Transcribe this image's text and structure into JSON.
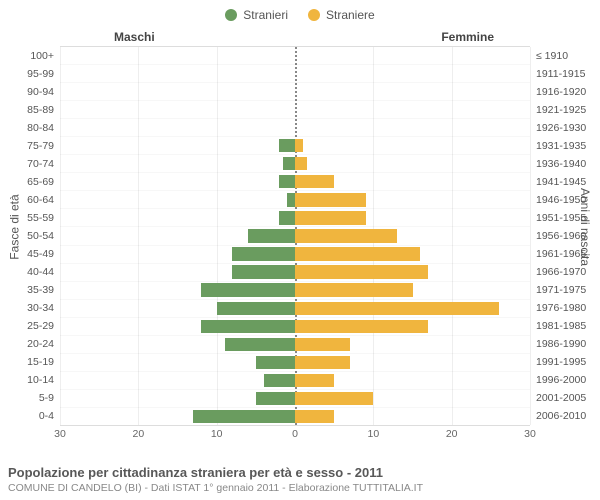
{
  "chart": {
    "type": "population-pyramid",
    "background_color": "#ffffff",
    "grid_color": "#eeeeee",
    "center_line_color": "#888888",
    "text_color": "#555555",
    "title_fontsize": 13,
    "label_fontsize": 10.5,
    "xlim": 30,
    "xticks": [
      30,
      20,
      10,
      0,
      10,
      20,
      30
    ],
    "legend": [
      {
        "label": "Stranieri",
        "color": "#6a9c5f"
      },
      {
        "label": "Straniere",
        "color": "#f0b53e"
      }
    ],
    "side_headers": {
      "left": "Maschi",
      "right": "Femmine"
    },
    "y_axis_titles": {
      "left": "Fasce di età",
      "right": "Anni di nascita"
    },
    "rows": [
      {
        "age": "100+",
        "year": "≤ 1910",
        "m": 0,
        "f": 0
      },
      {
        "age": "95-99",
        "year": "1911-1915",
        "m": 0,
        "f": 0
      },
      {
        "age": "90-94",
        "year": "1916-1920",
        "m": 0,
        "f": 0
      },
      {
        "age": "85-89",
        "year": "1921-1925",
        "m": 0,
        "f": 0
      },
      {
        "age": "80-84",
        "year": "1926-1930",
        "m": 0,
        "f": 0
      },
      {
        "age": "75-79",
        "year": "1931-1935",
        "m": 2,
        "f": 1
      },
      {
        "age": "70-74",
        "year": "1936-1940",
        "m": 1.5,
        "f": 1.5
      },
      {
        "age": "65-69",
        "year": "1941-1945",
        "m": 2,
        "f": 5
      },
      {
        "age": "60-64",
        "year": "1946-1950",
        "m": 1,
        "f": 9
      },
      {
        "age": "55-59",
        "year": "1951-1955",
        "m": 2,
        "f": 9
      },
      {
        "age": "50-54",
        "year": "1956-1960",
        "m": 6,
        "f": 13
      },
      {
        "age": "45-49",
        "year": "1961-1965",
        "m": 8,
        "f": 16
      },
      {
        "age": "40-44",
        "year": "1966-1970",
        "m": 8,
        "f": 17
      },
      {
        "age": "35-39",
        "year": "1971-1975",
        "m": 12,
        "f": 15
      },
      {
        "age": "30-34",
        "year": "1976-1980",
        "m": 10,
        "f": 26
      },
      {
        "age": "25-29",
        "year": "1981-1985",
        "m": 12,
        "f": 17
      },
      {
        "age": "20-24",
        "year": "1986-1990",
        "m": 9,
        "f": 7
      },
      {
        "age": "15-19",
        "year": "1991-1995",
        "m": 5,
        "f": 7
      },
      {
        "age": "10-14",
        "year": "1996-2000",
        "m": 4,
        "f": 5
      },
      {
        "age": "5-9",
        "year": "2001-2005",
        "m": 5,
        "f": 10
      },
      {
        "age": "0-4",
        "year": "2006-2010",
        "m": 13,
        "f": 5
      }
    ],
    "colors": {
      "male": "#6a9c5f",
      "female": "#f0b53e"
    }
  },
  "caption": {
    "title": "Popolazione per cittadinanza straniera per età e sesso - 2011",
    "subtitle": "COMUNE DI CANDELO (BI) - Dati ISTAT 1° gennaio 2011 - Elaborazione TUTTITALIA.IT"
  }
}
